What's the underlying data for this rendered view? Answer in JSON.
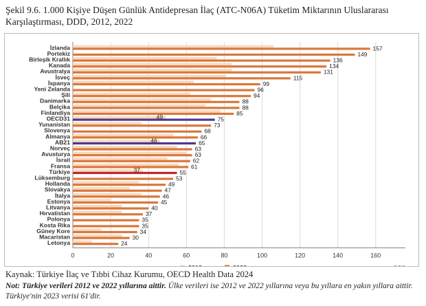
{
  "title": "Şekil 9.6. 1.000 Kişiye Düşen Günlük Antidepresan İlaç (ATC-N06A) Tüketim Miktarının Uluslararası Karşılaştırması, DDD, 2012, 2022",
  "source": "Kaynak: Türkiye İlaç ve Tıbbi Cihaz Kurumu, OECD Health Data 2024",
  "note_bold": "Not: Türkiye verileri 2012 ve 2022 yıllarına aittir.",
  "note_rest": " Ülke verileri ise 2012 ve 2022 yıllarına veya bu yıllara en yakın yıllara aittir. Türkiye'nin 2023 verisi 61'dir.",
  "colors": {
    "y2012": "#f8d8c0",
    "y2022": "#d9773a",
    "oecd": "#4b3a8c",
    "turkey": "#c0282d",
    "grid": "#d9d9d9",
    "axis": "#7f7f7f"
  },
  "chart_data": {
    "type": "bar",
    "orientation": "horizontal",
    "xlabel": "DDD",
    "xlim": [
      0,
      180
    ],
    "xticks": [
      0,
      20,
      40,
      60,
      80,
      100,
      120,
      140,
      160
    ],
    "grid": "vertical",
    "legend_position": "bottom-center",
    "categories": [
      "İzlanda",
      "Portekiz",
      "Birleşik Krallık",
      "Kanada",
      "Avustralya",
      "İsveç",
      "İspanya",
      "Yeni Zelanda",
      "Şili",
      "Danimarka",
      "Belçika",
      "Finlandiya",
      "OECD31",
      "Yunanistan",
      "Slovenya",
      "Almanya",
      "AB21",
      "Norveç",
      "Avusturya",
      "İsrail",
      "Fransa",
      "Türkiye",
      "Lüksemburg",
      "Hollanda",
      "Slovakya",
      "İtalya",
      "Estonya",
      "Litvanya",
      "Hırvatistan",
      "Polonya",
      "Kosta Rika",
      "Güney Kore",
      "Macaristan",
      "Letonya"
    ],
    "series": [
      {
        "name": "2012",
        "values": [
          106,
          null,
          76,
          84,
          84,
          81,
          64,
          null,
          62,
          73,
          70,
          78,
          49,
          36,
          null,
          53,
          46,
          55,
          60,
          50,
          56,
          37,
          null,
          35,
          30,
          36,
          20,
          26,
          26,
          null,
          null,
          15,
          26,
          10
        ]
      },
      {
        "name": "2022",
        "values": [
          157,
          149,
          136,
          134,
          131,
          115,
          99,
          96,
          94,
          88,
          88,
          85,
          75,
          73,
          68,
          66,
          65,
          63,
          63,
          62,
          61,
          55,
          53,
          49,
          47,
          46,
          45,
          40,
          37,
          35,
          35,
          34,
          30,
          24
        ]
      }
    ],
    "data_labels_2012": {
      "OECD31": 49,
      "AB21": 46,
      "Türkiye": 37
    },
    "highlight": {
      "OECD31": "oecd",
      "AB21": "oecd",
      "Türkiye": "turkey"
    }
  }
}
